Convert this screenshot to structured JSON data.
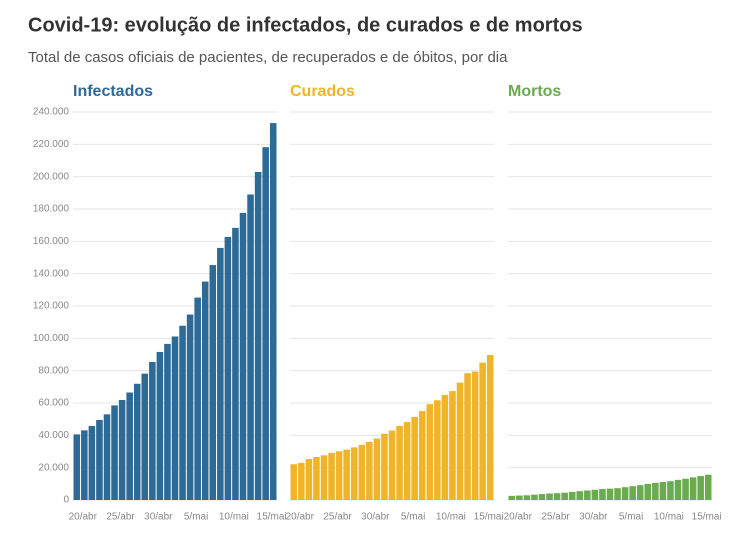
{
  "title": "Covid-19: evolução de infectados, de curados e de mortos",
  "subtitle": "Total de casos oficiais de pacientes, de recuperados e de óbitos, por dia",
  "chart_data": [
    {
      "type": "bar",
      "title": "Infectados",
      "color": "#2d6a96",
      "categories": [
        "20/abr",
        null,
        null,
        null,
        null,
        "25/abr",
        null,
        null,
        null,
        null,
        "30/abr",
        null,
        null,
        null,
        null,
        "5/mai",
        null,
        null,
        null,
        null,
        "10/mai",
        null,
        null,
        null,
        null,
        "15/mai",
        null
      ],
      "values": [
        40581,
        43079,
        45757,
        49492,
        52995,
        58509,
        61888,
        66501,
        71886,
        78162,
        85380,
        91589,
        96559,
        101147,
        107780,
        114715,
        125218,
        135106,
        145328,
        155939,
        162699,
        168331,
        177589,
        188974,
        202918,
        218223,
        233142
      ],
      "ylim": [
        0,
        240000
      ],
      "yticks": [
        0,
        {
          "value": 20000,
          "label": "20.000"
        },
        {
          "value": 40000,
          "label": "40.000"
        },
        {
          "value": 60000,
          "label": "60.000"
        },
        {
          "value": 80000,
          "label": "80.000"
        },
        {
          "value": 100000,
          "label": "100.000"
        },
        {
          "value": 120000,
          "label": "120.000"
        },
        {
          "value": 140000,
          "label": "140.000"
        },
        {
          "value": 160000,
          "label": "160.000"
        },
        {
          "value": 180000,
          "label": "180.000"
        },
        {
          "value": 200000,
          "label": "200.000"
        },
        {
          "value": 220000,
          "label": "220.000"
        },
        {
          "value": 240000,
          "label": "240.000"
        }
      ],
      "grid": true
    },
    {
      "type": "bar",
      "title": "Curados",
      "color": "#f0b429",
      "categories": [
        "20/abr",
        null,
        null,
        null,
        null,
        "25/abr",
        null,
        null,
        null,
        null,
        "30/abr",
        null,
        null,
        null,
        null,
        "5/mai",
        null,
        null,
        null,
        null,
        "10/mai",
        null,
        null,
        null,
        null,
        "15/mai",
        null
      ],
      "values": [
        22130,
        22991,
        25318,
        26573,
        27655,
        29160,
        30152,
        31142,
        32544,
        34132,
        35935,
        38039,
        40937,
        42991,
        45815,
        48221,
        51370,
        54980,
        59297,
        61685,
        64957,
        67384,
        72597,
        78424,
        79479,
        84970,
        89672
      ],
      "ylim": [
        0,
        240000
      ],
      "yticks": [
        0,
        20000,
        40000,
        60000,
        80000,
        100000,
        120000,
        140000,
        160000,
        180000,
        200000,
        220000,
        240000
      ],
      "grid": true
    },
    {
      "type": "bar",
      "title": "Mortos",
      "color": "#6aab4f",
      "categories": [
        "20/abr",
        null,
        null,
        null,
        null,
        "25/abr",
        null,
        null,
        null,
        null,
        "30/abr",
        null,
        null,
        null,
        null,
        "5/mai",
        null,
        null,
        null,
        null,
        "10/mai",
        null,
        null,
        null,
        null,
        "15/mai",
        null
      ],
      "values": [
        2575,
        2741,
        2906,
        3313,
        3670,
        4016,
        4205,
        4543,
        5017,
        5466,
        5901,
        6329,
        6750,
        7025,
        7321,
        7921,
        8536,
        9146,
        9897,
        10627,
        11123,
        11653,
        12461,
        13149,
        13993,
        14817,
        15633
      ],
      "ylim": [
        0,
        240000
      ],
      "yticks": [
        0,
        20000,
        40000,
        60000,
        80000,
        100000,
        120000,
        140000,
        160000,
        180000,
        200000,
        220000,
        240000
      ],
      "grid": true
    }
  ]
}
